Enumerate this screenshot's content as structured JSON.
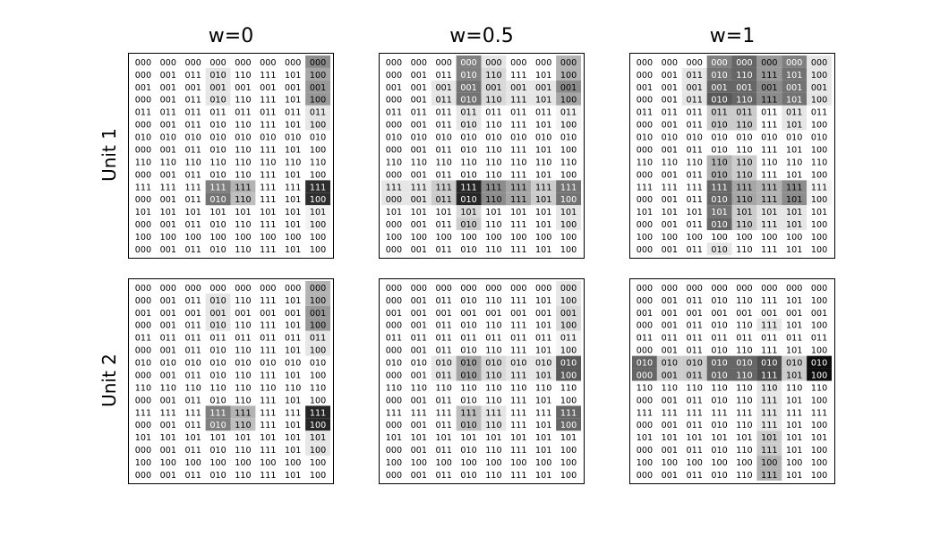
{
  "chart_data": {
    "type": "heatmap",
    "columns": [
      "w=0",
      "w=0.5",
      "w=1"
    ],
    "rows": [
      "Unit 1",
      "Unit 2"
    ],
    "grid": {
      "n_rows": 16,
      "n_cols": 8,
      "row_patterns": [
        [
          "000",
          "000",
          "000",
          "000",
          "000",
          "000",
          "000",
          "000"
        ],
        [
          "000",
          "001",
          "011",
          "010",
          "110",
          "111",
          "101",
          "100"
        ],
        [
          "001",
          "001",
          "001",
          "001",
          "001",
          "001",
          "001",
          "001"
        ],
        [
          "000",
          "001",
          "011",
          "010",
          "110",
          "111",
          "101",
          "100"
        ],
        [
          "011",
          "011",
          "011",
          "011",
          "011",
          "011",
          "011",
          "011"
        ],
        [
          "000",
          "001",
          "011",
          "010",
          "110",
          "111",
          "101",
          "100"
        ],
        [
          "010",
          "010",
          "010",
          "010",
          "010",
          "010",
          "010",
          "010"
        ],
        [
          "000",
          "001",
          "011",
          "010",
          "110",
          "111",
          "101",
          "100"
        ],
        [
          "110",
          "110",
          "110",
          "110",
          "110",
          "110",
          "110",
          "110"
        ],
        [
          "000",
          "001",
          "011",
          "010",
          "110",
          "111",
          "101",
          "100"
        ],
        [
          "111",
          "111",
          "111",
          "111",
          "111",
          "111",
          "111",
          "111"
        ],
        [
          "000",
          "001",
          "011",
          "010",
          "110",
          "111",
          "101",
          "100"
        ],
        [
          "101",
          "101",
          "101",
          "101",
          "101",
          "101",
          "101",
          "101"
        ],
        [
          "000",
          "001",
          "011",
          "010",
          "110",
          "111",
          "101",
          "100"
        ],
        [
          "100",
          "100",
          "100",
          "100",
          "100",
          "100",
          "100",
          "100"
        ],
        [
          "000",
          "001",
          "011",
          "010",
          "110",
          "111",
          "101",
          "100"
        ]
      ]
    },
    "activation_scale": "0 = white, 1 = black (approximate, read from gray level)",
    "panels": [
      {
        "unit": "Unit 1",
        "w": "w=0",
        "activations": [
          [
            0,
            0,
            0,
            0,
            0,
            0,
            0,
            0.45
          ],
          [
            0,
            0,
            0,
            0.1,
            0,
            0,
            0,
            0.35
          ],
          [
            0,
            0,
            0,
            0.1,
            0,
            0,
            0,
            0.4
          ],
          [
            0,
            0,
            0,
            0.1,
            0,
            0,
            0,
            0.4
          ],
          [
            0,
            0,
            0,
            0,
            0,
            0,
            0,
            0.1
          ],
          [
            0,
            0,
            0,
            0,
            0,
            0,
            0,
            0.1
          ],
          [
            0,
            0,
            0,
            0,
            0,
            0,
            0,
            0
          ],
          [
            0,
            0,
            0,
            0,
            0,
            0,
            0,
            0
          ],
          [
            0,
            0,
            0,
            0,
            0,
            0,
            0,
            0
          ],
          [
            0,
            0,
            0,
            0,
            0,
            0,
            0,
            0
          ],
          [
            0,
            0,
            0,
            0.5,
            0.3,
            0,
            0,
            0.82
          ],
          [
            0,
            0,
            0,
            0.55,
            0.25,
            0,
            0,
            0.82
          ],
          [
            0,
            0,
            0,
            0,
            0,
            0,
            0,
            0.05
          ],
          [
            0,
            0,
            0,
            0,
            0,
            0,
            0,
            0.05
          ],
          [
            0,
            0,
            0,
            0,
            0,
            0,
            0,
            0
          ],
          [
            0,
            0,
            0,
            0,
            0,
            0,
            0,
            0
          ]
        ]
      },
      {
        "unit": "Unit 1",
        "w": "w=0.5",
        "activations": [
          [
            0,
            0,
            0,
            0.5,
            0.1,
            0,
            0,
            0.3
          ],
          [
            0,
            0,
            0,
            0.5,
            0.15,
            0,
            0,
            0.3
          ],
          [
            0,
            0,
            0.1,
            0.55,
            0.15,
            0.1,
            0.1,
            0.45
          ],
          [
            0,
            0,
            0.1,
            0.55,
            0.15,
            0.1,
            0.1,
            0.35
          ],
          [
            0,
            0,
            0,
            0.1,
            0,
            0,
            0,
            0.05
          ],
          [
            0,
            0,
            0,
            0.1,
            0,
            0,
            0,
            0.05
          ],
          [
            0,
            0,
            0,
            0,
            0,
            0,
            0,
            0
          ],
          [
            0,
            0,
            0,
            0,
            0,
            0,
            0,
            0
          ],
          [
            0,
            0,
            0,
            0,
            0,
            0,
            0,
            0
          ],
          [
            0,
            0,
            0,
            0,
            0,
            0,
            0,
            0
          ],
          [
            0.1,
            0.1,
            0.2,
            0.85,
            0.45,
            0.35,
            0.2,
            0.55
          ],
          [
            0.1,
            0.1,
            0.2,
            0.85,
            0.45,
            0.35,
            0.2,
            0.55
          ],
          [
            0,
            0,
            0,
            0.15,
            0,
            0,
            0,
            0.1
          ],
          [
            0,
            0,
            0,
            0.2,
            0,
            0,
            0,
            0.1
          ],
          [
            0,
            0,
            0,
            0,
            0,
            0,
            0,
            0
          ],
          [
            0,
            0,
            0,
            0,
            0,
            0,
            0,
            0
          ]
        ]
      },
      {
        "unit": "Unit 1",
        "w": "w=1",
        "activations": [
          [
            0,
            0,
            0,
            0.5,
            0.6,
            0.4,
            0.5,
            0.1
          ],
          [
            0,
            0,
            0.1,
            0.55,
            0.6,
            0.4,
            0.55,
            0.1
          ],
          [
            0,
            0,
            0.1,
            0.6,
            0.6,
            0.45,
            0.55,
            0.1
          ],
          [
            0,
            0,
            0.1,
            0.65,
            0.6,
            0.45,
            0.55,
            0.1
          ],
          [
            0,
            0,
            0,
            0.2,
            0.2,
            0,
            0.1,
            0
          ],
          [
            0,
            0,
            0,
            0.2,
            0.2,
            0,
            0.1,
            0
          ],
          [
            0,
            0,
            0,
            0,
            0,
            0,
            0,
            0
          ],
          [
            0,
            0,
            0,
            0,
            0,
            0,
            0,
            0
          ],
          [
            0,
            0,
            0,
            0.3,
            0.2,
            0,
            0,
            0
          ],
          [
            0,
            0,
            0,
            0.3,
            0.2,
            0,
            0,
            0
          ],
          [
            0,
            0,
            0,
            0.6,
            0.35,
            0.3,
            0.45,
            0.05
          ],
          [
            0,
            0,
            0,
            0.6,
            0.35,
            0.3,
            0.45,
            0.05
          ],
          [
            0,
            0,
            0,
            0.55,
            0.2,
            0.1,
            0.1,
            0
          ],
          [
            0,
            0,
            0,
            0.6,
            0.2,
            0.1,
            0.1,
            0
          ],
          [
            0,
            0,
            0,
            0,
            0,
            0,
            0,
            0
          ],
          [
            0,
            0,
            0,
            0.1,
            0,
            0,
            0,
            0
          ]
        ]
      },
      {
        "unit": "Unit 2",
        "w": "w=0",
        "activations": [
          [
            0,
            0,
            0,
            0,
            0,
            0,
            0,
            0.3
          ],
          [
            0,
            0,
            0,
            0.1,
            0,
            0,
            0,
            0.3
          ],
          [
            0,
            0,
            0,
            0.1,
            0,
            0,
            0,
            0.4
          ],
          [
            0,
            0,
            0,
            0.1,
            0,
            0,
            0,
            0.4
          ],
          [
            0,
            0,
            0,
            0,
            0,
            0,
            0,
            0.1
          ],
          [
            0,
            0,
            0,
            0,
            0,
            0,
            0,
            0.1
          ],
          [
            0,
            0,
            0,
            0,
            0,
            0,
            0,
            0
          ],
          [
            0,
            0,
            0,
            0,
            0,
            0,
            0,
            0
          ],
          [
            0,
            0,
            0,
            0,
            0,
            0,
            0,
            0
          ],
          [
            0,
            0,
            0,
            0,
            0,
            0,
            0,
            0
          ],
          [
            0,
            0,
            0,
            0.5,
            0.3,
            0,
            0,
            0.85
          ],
          [
            0,
            0,
            0,
            0.5,
            0.25,
            0,
            0,
            0.85
          ],
          [
            0,
            0,
            0,
            0,
            0,
            0,
            0,
            0.1
          ],
          [
            0,
            0,
            0,
            0,
            0,
            0,
            0,
            0.1
          ],
          [
            0,
            0,
            0,
            0,
            0,
            0,
            0,
            0
          ],
          [
            0,
            0,
            0,
            0,
            0,
            0,
            0,
            0
          ]
        ]
      },
      {
        "unit": "Unit 2",
        "w": "w=0.5",
        "activations": [
          [
            0,
            0,
            0,
            0,
            0,
            0,
            0,
            0.1
          ],
          [
            0,
            0,
            0,
            0,
            0,
            0,
            0,
            0.1
          ],
          [
            0,
            0,
            0,
            0,
            0,
            0,
            0,
            0.15
          ],
          [
            0,
            0,
            0,
            0,
            0,
            0,
            0,
            0.15
          ],
          [
            0,
            0,
            0,
            0,
            0,
            0,
            0,
            0.05
          ],
          [
            0,
            0,
            0,
            0,
            0,
            0,
            0,
            0.05
          ],
          [
            0,
            0,
            0.1,
            0.35,
            0.15,
            0.1,
            0.1,
            0.65
          ],
          [
            0,
            0,
            0.1,
            0.35,
            0.15,
            0.1,
            0.1,
            0.65
          ],
          [
            0,
            0,
            0,
            0,
            0,
            0,
            0,
            0
          ],
          [
            0,
            0,
            0,
            0,
            0,
            0,
            0,
            0
          ],
          [
            0,
            0,
            0,
            0.25,
            0.1,
            0,
            0,
            0.6
          ],
          [
            0,
            0,
            0,
            0.25,
            0.1,
            0,
            0,
            0.6
          ],
          [
            0,
            0,
            0,
            0,
            0,
            0,
            0,
            0
          ],
          [
            0,
            0,
            0,
            0,
            0,
            0,
            0,
            0
          ],
          [
            0,
            0,
            0,
            0,
            0,
            0,
            0,
            0
          ],
          [
            0,
            0,
            0,
            0,
            0,
            0,
            0,
            0
          ]
        ]
      },
      {
        "unit": "Unit 2",
        "w": "w=1",
        "activations": [
          [
            0,
            0,
            0,
            0,
            0,
            0,
            0,
            0
          ],
          [
            0,
            0,
            0,
            0,
            0,
            0,
            0,
            0
          ],
          [
            0,
            0,
            0,
            0,
            0,
            0,
            0,
            0
          ],
          [
            0,
            0,
            0,
            0,
            0,
            0.1,
            0,
            0
          ],
          [
            0,
            0,
            0,
            0,
            0,
            0,
            0,
            0
          ],
          [
            0,
            0,
            0,
            0,
            0,
            0,
            0,
            0
          ],
          [
            0.6,
            0.2,
            0.2,
            0.6,
            0.6,
            0.7,
            0.2,
            0.95
          ],
          [
            0.6,
            0.2,
            0.2,
            0.6,
            0.6,
            0.7,
            0.2,
            0.95
          ],
          [
            0,
            0,
            0,
            0,
            0,
            0.1,
            0,
            0
          ],
          [
            0,
            0,
            0,
            0,
            0,
            0.1,
            0,
            0
          ],
          [
            0,
            0,
            0,
            0,
            0,
            0.1,
            0,
            0
          ],
          [
            0,
            0,
            0,
            0,
            0,
            0.1,
            0,
            0
          ],
          [
            0,
            0,
            0,
            0,
            0,
            0.2,
            0,
            0
          ],
          [
            0,
            0,
            0,
            0,
            0,
            0.2,
            0,
            0
          ],
          [
            0,
            0,
            0,
            0,
            0,
            0.3,
            0,
            0
          ],
          [
            0,
            0,
            0,
            0,
            0,
            0.3,
            0,
            0
          ]
        ]
      }
    ]
  }
}
